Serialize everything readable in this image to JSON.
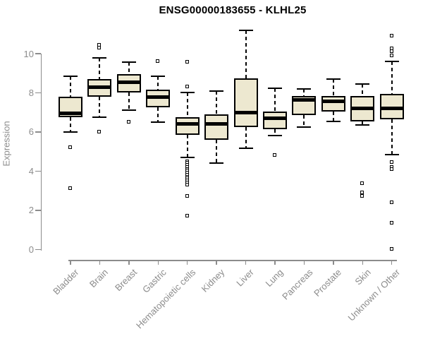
{
  "chart_data": {
    "type": "boxplot",
    "title": "ENSG00000183655 - KLHL25",
    "ylabel": "Expression",
    "xlabel": "",
    "ylim": [
      0,
      11.3
    ],
    "yticks": [
      0,
      2,
      4,
      6,
      8,
      10
    ],
    "grid": false,
    "legend": "none",
    "box_fill": "#ede8d0",
    "box_border": "#000000",
    "axis_color": "#8c8c8c",
    "categories": [
      "Bladder",
      "Brain",
      "Breast",
      "Gastric",
      "Hematopoietic cells",
      "Kidney",
      "Liver",
      "Lung",
      "Pancreas",
      "Prostate",
      "Skin",
      "Unknown / Other"
    ],
    "series": [
      {
        "name": "Bladder",
        "low": 6.0,
        "q1": 6.75,
        "median": 6.95,
        "q3": 7.8,
        "high": 8.85,
        "outliers": [
          5.2,
          3.1
        ]
      },
      {
        "name": "Brain",
        "low": 6.75,
        "q1": 7.8,
        "median": 8.3,
        "q3": 8.7,
        "high": 9.8,
        "outliers": [
          10.45,
          10.3,
          6.0
        ]
      },
      {
        "name": "Breast",
        "low": 7.1,
        "q1": 8.0,
        "median": 8.55,
        "q3": 8.95,
        "high": 9.55,
        "outliers": [
          6.5
        ]
      },
      {
        "name": "Gastric",
        "low": 6.5,
        "q1": 7.25,
        "median": 7.8,
        "q3": 8.15,
        "high": 8.85,
        "outliers": [
          9.6
        ]
      },
      {
        "name": "Hematopoietic cells",
        "low": 4.7,
        "q1": 5.85,
        "median": 6.4,
        "q3": 6.75,
        "high": 8.0,
        "outliers": [
          9.55,
          8.3,
          4.5,
          4.4,
          4.3,
          4.2,
          4.1,
          4.0,
          3.9,
          3.8,
          3.7,
          3.6,
          3.5,
          3.4,
          3.3,
          2.7,
          1.7
        ]
      },
      {
        "name": "Kidney",
        "low": 4.4,
        "q1": 5.6,
        "median": 6.4,
        "q3": 6.9,
        "high": 8.1,
        "outliers": []
      },
      {
        "name": "Liver",
        "low": 5.15,
        "q1": 6.25,
        "median": 7.0,
        "q3": 8.75,
        "high": 11.2,
        "outliers": []
      },
      {
        "name": "Lung",
        "low": 5.8,
        "q1": 6.15,
        "median": 6.7,
        "q3": 7.05,
        "high": 8.25,
        "outliers": [
          4.8
        ]
      },
      {
        "name": "Pancreas",
        "low": 6.25,
        "q1": 6.85,
        "median": 7.65,
        "q3": 7.85,
        "high": 8.2,
        "outliers": []
      },
      {
        "name": "Prostate",
        "low": 6.55,
        "q1": 7.05,
        "median": 7.55,
        "q3": 7.85,
        "high": 8.7,
        "outliers": []
      },
      {
        "name": "Skin",
        "low": 6.35,
        "q1": 6.55,
        "median": 7.2,
        "q3": 7.85,
        "high": 8.45,
        "outliers": [
          3.35,
          2.9,
          2.7
        ]
      },
      {
        "name": "Unknown / Other",
        "low": 4.85,
        "q1": 6.65,
        "median": 7.2,
        "q3": 7.95,
        "high": 9.6,
        "outliers": [
          10.9,
          10.25,
          10.1,
          9.9,
          4.45,
          4.2,
          4.1,
          2.4,
          1.35,
          0.0
        ]
      }
    ]
  }
}
